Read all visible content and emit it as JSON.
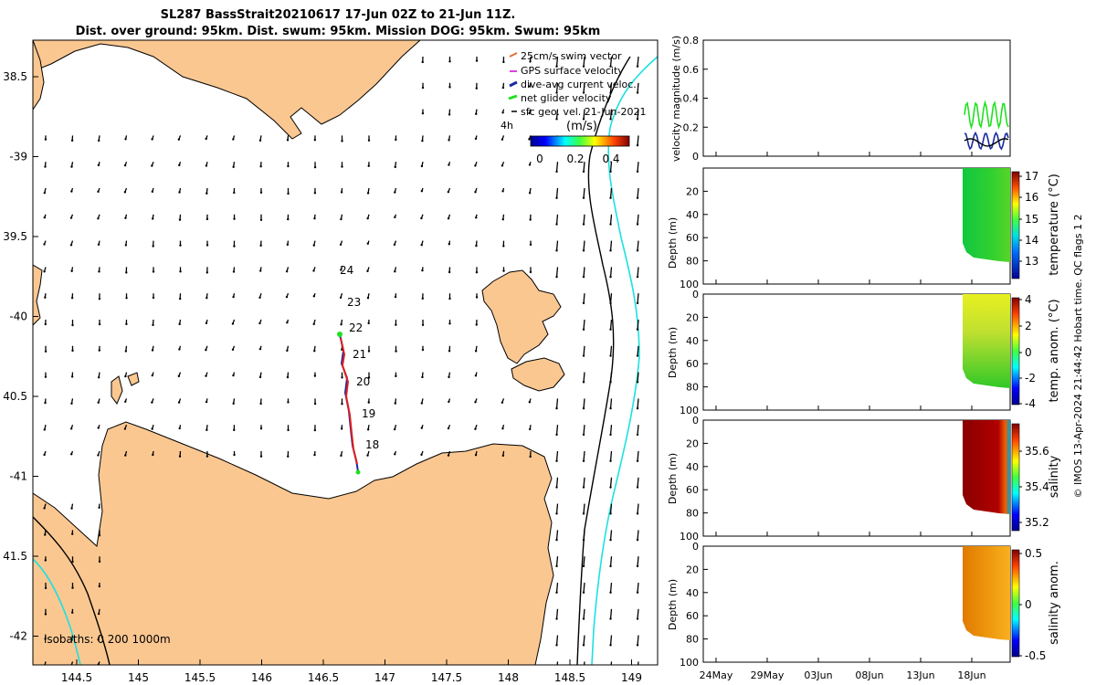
{
  "title": {
    "line1": "SL287 BassStrait20210617 17-Jun 02Z to 21-Jun 11Z.",
    "line2": "Dist. over ground: 95km. Dist. swum: 95km. Mission DOG: 95km. Swum: 95km"
  },
  "map": {
    "lon_ticks": [
      "144.5",
      "145",
      "145.5",
      "146",
      "146.5",
      "147",
      "147.5",
      "148",
      "148.5",
      "149"
    ],
    "lat_ticks": [
      "38.5",
      "-39",
      "39.5",
      "-40",
      "40.5",
      "-41",
      "41.5",
      "-42"
    ],
    "legend": [
      {
        "label": "25cm/s swim vector",
        "color": "#e07030"
      },
      {
        "label": "GPS surface velocity",
        "color": "#e040e0"
      },
      {
        "label": "dive-avg current veloc.",
        "color": "#1a2aa0"
      },
      {
        "label": "net glider velocity",
        "color": "#20e020"
      },
      {
        "label": "sfc geo. vel. 21-Jun-2021",
        "color": "#000000"
      }
    ],
    "legend_extra": "4h",
    "colorbar": {
      "label": "(m/s)",
      "ticks": [
        "0",
        "0.2",
        "0.4"
      ]
    },
    "day_labels": [
      "24",
      "23",
      "22",
      "21",
      "20",
      "19",
      "18"
    ],
    "isobaths_label": "isobaths: 0   200  1000m"
  },
  "chart_data": [
    {
      "type": "line",
      "ylabel": "velocity magnitude (m/s)",
      "ylim": [
        0,
        0.8
      ],
      "yticks": [
        "0",
        "0.2",
        "0.4",
        "0.6",
        "0.8"
      ],
      "series": [
        {
          "name": "net glider velocity",
          "color": "#20e020",
          "range": [
            0.2,
            0.37
          ]
        },
        {
          "name": "dive-avg current veloc.",
          "color": "#1a2aa0",
          "range": [
            0.05,
            0.16
          ]
        },
        {
          "name": "mean",
          "color": "#000000",
          "range": [
            0.07,
            0.12
          ]
        }
      ]
    },
    {
      "type": "heatmap",
      "ylabel": "Depth (m)",
      "yticks": [
        "20",
        "40",
        "60",
        "80",
        "100"
      ],
      "colorbar_label": "temperature (°C)",
      "colorbar_ticks": [
        "17",
        "16",
        "15",
        "14",
        "13"
      ]
    },
    {
      "type": "heatmap",
      "ylabel": "Depth (m)",
      "yticks": [
        "0",
        "20",
        "40",
        "60",
        "80",
        "100"
      ],
      "colorbar_label": "temp. anom. (°C)",
      "colorbar_ticks": [
        "4",
        "2",
        "0",
        "-2",
        "-4"
      ]
    },
    {
      "type": "heatmap",
      "ylabel": "Depth (m)",
      "yticks": [
        "0",
        "20",
        "40",
        "60",
        "80",
        "100"
      ],
      "colorbar_label": "salinity",
      "colorbar_ticks": [
        "35.6",
        "35.4",
        "35.2"
      ]
    },
    {
      "type": "heatmap",
      "ylabel": "Depth (m)",
      "yticks": [
        "0",
        "20",
        "40",
        "60",
        "80",
        "100"
      ],
      "colorbar_label": "salinity anom.",
      "colorbar_ticks": [
        "0.5",
        "0",
        "-0.5"
      ]
    }
  ],
  "time_axis": [
    "24May",
    "29May",
    "03Jun",
    "08Jun",
    "13Jun",
    "18Jun"
  ],
  "footer": "© IMOS 13-Apr-2024 21:44:42 Hobart time. QC flags 1  2"
}
